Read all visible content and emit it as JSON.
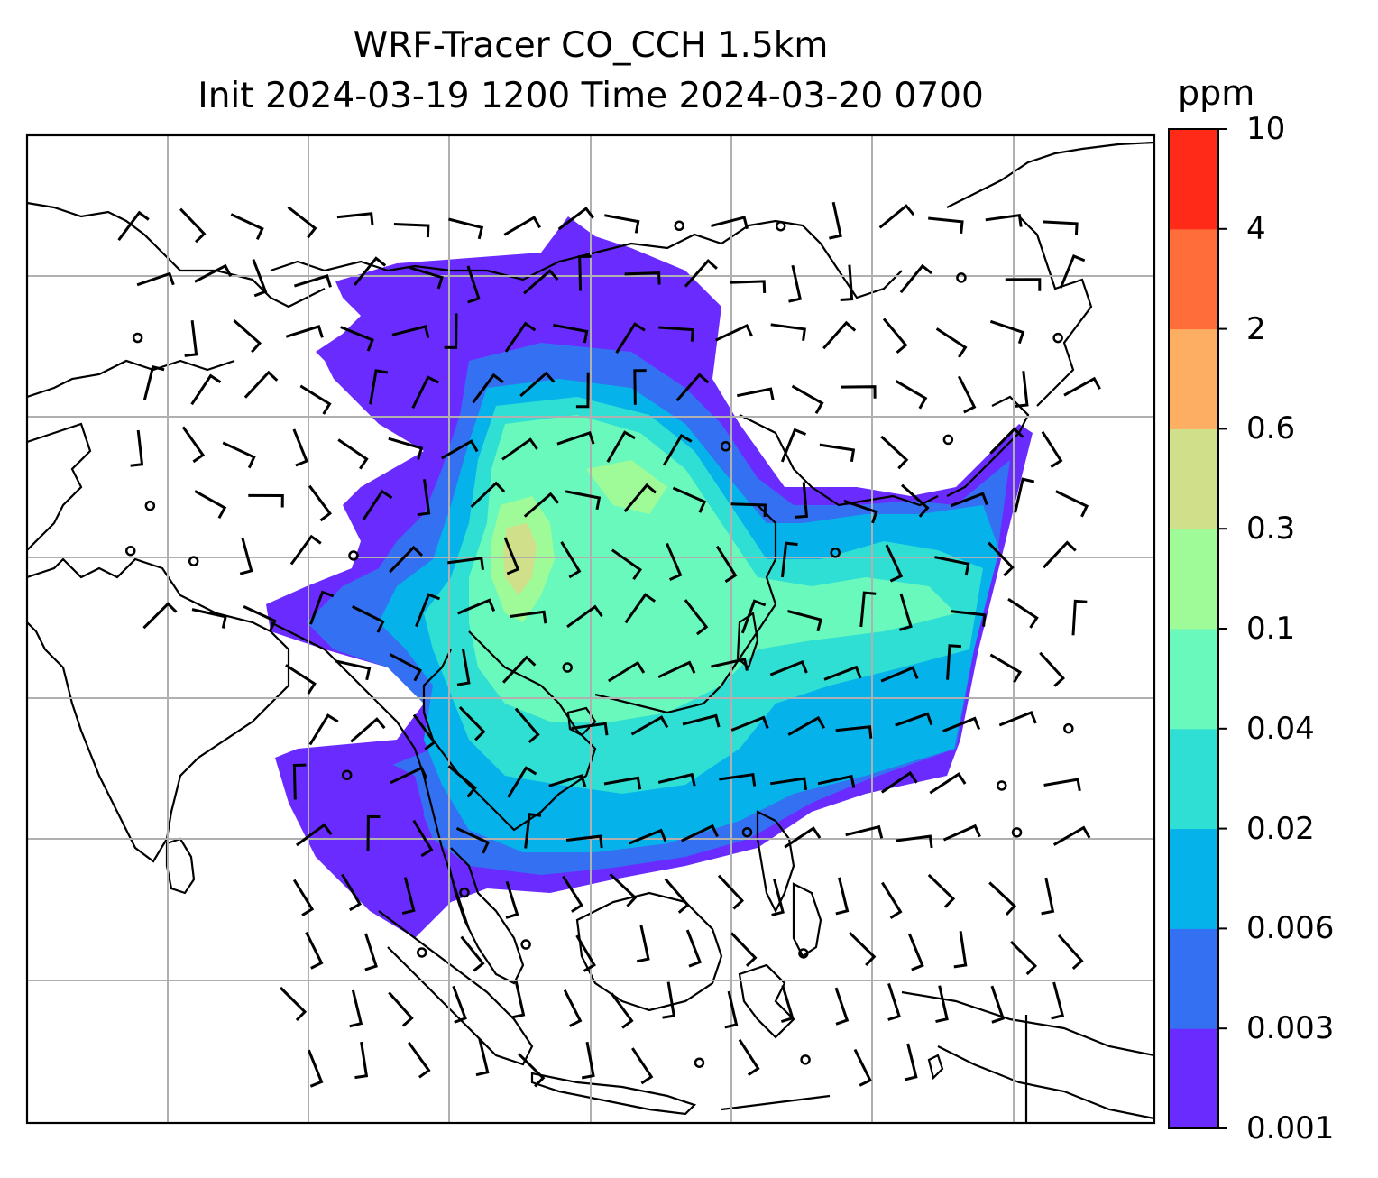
{
  "figure": {
    "title_line1": "WRF-Tracer CO_CCH 1.5km",
    "title_line2": "Init 2024-03-19 1200 Time 2024-03-20 0700"
  },
  "map": {
    "region": "South / Southeast / East Asia",
    "gridlines": true,
    "gridline_color": "#b0b0b0",
    "coastline_color": "#000000",
    "overlay": "wind barbs (black)"
  },
  "colorbar": {
    "unit": "ppm",
    "orientation": "vertical",
    "ticks": [
      "0.001",
      "0.003",
      "0.006",
      "0.02",
      "0.04",
      "0.1",
      "0.3",
      "0.6",
      "2",
      "4",
      "10"
    ],
    "levels": [
      {
        "from": "0.001",
        "to": "0.003",
        "color": "#6a2bff"
      },
      {
        "from": "0.003",
        "to": "0.006",
        "color": "#3471f2"
      },
      {
        "from": "0.006",
        "to": "0.02",
        "color": "#05b3ea"
      },
      {
        "from": "0.02",
        "to": "0.04",
        "color": "#30dfd4"
      },
      {
        "from": "0.04",
        "to": "0.1",
        "color": "#6af9bd"
      },
      {
        "from": "0.1",
        "to": "0.3",
        "color": "#9ffb98"
      },
      {
        "from": "0.3",
        "to": "0.6",
        "color": "#d0df8a"
      },
      {
        "from": "0.6",
        "to": "2",
        "color": "#fdae62"
      },
      {
        "from": "2",
        "to": "4",
        "color": "#ff6d3a"
      },
      {
        "from": "4",
        "to": "10",
        "color": "#ff2a18"
      }
    ]
  }
}
